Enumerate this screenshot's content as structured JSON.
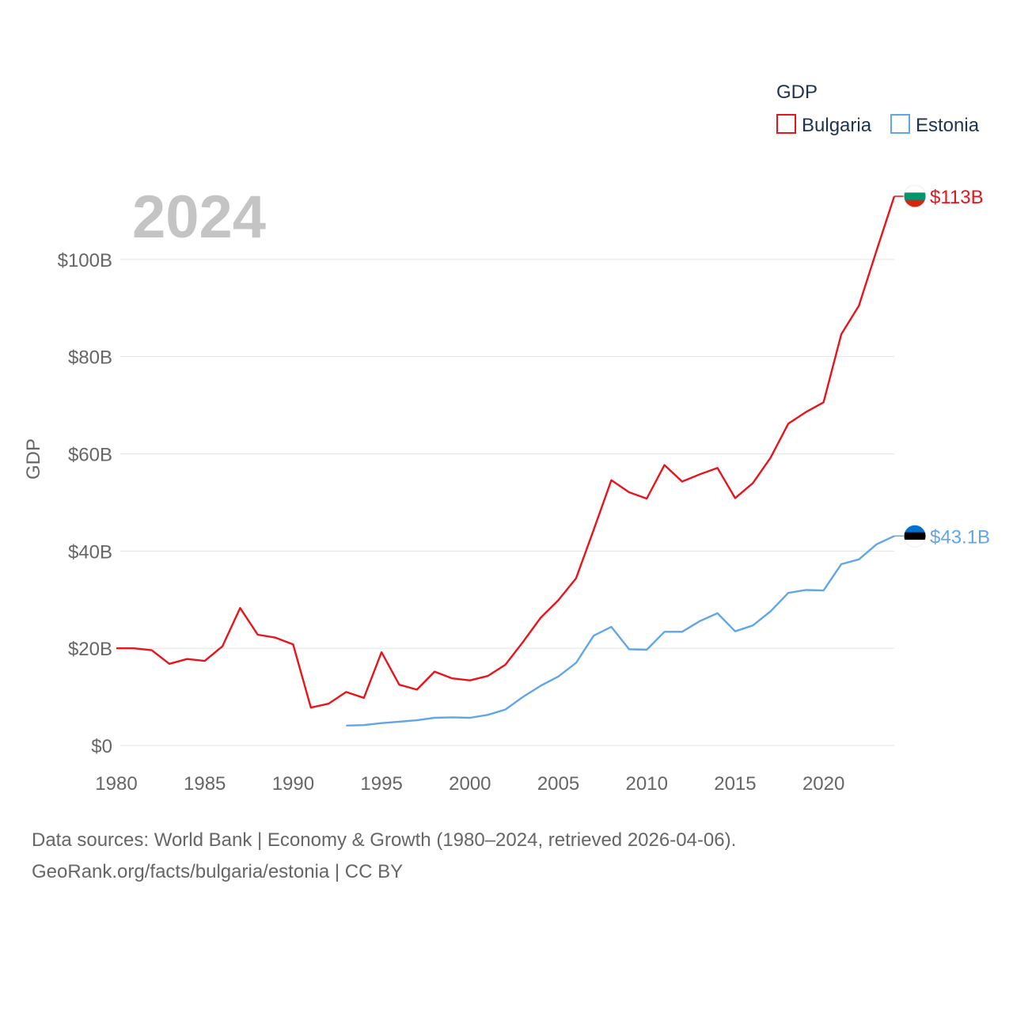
{
  "chart_data": {
    "type": "line",
    "title": "",
    "xlabel": "",
    "ylabel": "GDP",
    "legend_title": "GDP",
    "legend_position": "top-right",
    "year_label": "2024",
    "xlim": [
      1980,
      2024
    ],
    "ylim": [
      0,
      113
    ],
    "x_ticks": [
      1980,
      1985,
      1990,
      1995,
      2000,
      2005,
      2010,
      2015,
      2020
    ],
    "y_ticks": [
      {
        "value": 0,
        "label": "$0"
      },
      {
        "value": 20,
        "label": "$20B"
      },
      {
        "value": 40,
        "label": "$40B"
      },
      {
        "value": 60,
        "label": "$60B"
      },
      {
        "value": 80,
        "label": "$80B"
      },
      {
        "value": 100,
        "label": "$100B"
      }
    ],
    "series": [
      {
        "name": "Bulgaria",
        "color": "#e8141c",
        "end_label": "$113B",
        "flag_colors": [
          "#ffffff",
          "#00966e",
          "#d62612"
        ],
        "points": [
          [
            1980,
            20.0
          ],
          [
            1981,
            20.0
          ],
          [
            1982,
            19.6
          ],
          [
            1983,
            16.8
          ],
          [
            1984,
            17.8
          ],
          [
            1985,
            17.4
          ],
          [
            1986,
            20.4
          ],
          [
            1987,
            28.3
          ],
          [
            1988,
            22.8
          ],
          [
            1989,
            22.2
          ],
          [
            1990,
            20.8
          ],
          [
            1991,
            7.8
          ],
          [
            1992,
            8.6
          ],
          [
            1993,
            11.0
          ],
          [
            1994,
            9.8
          ],
          [
            1995,
            19.2
          ],
          [
            1996,
            12.5
          ],
          [
            1997,
            11.5
          ],
          [
            1998,
            15.2
          ],
          [
            1999,
            13.8
          ],
          [
            2000,
            13.4
          ],
          [
            2001,
            14.3
          ],
          [
            2002,
            16.6
          ],
          [
            2003,
            21.3
          ],
          [
            2004,
            26.3
          ],
          [
            2005,
            29.9
          ],
          [
            2006,
            34.4
          ],
          [
            2007,
            44.4
          ],
          [
            2008,
            54.6
          ],
          [
            2009,
            52.1
          ],
          [
            2010,
            50.8
          ],
          [
            2011,
            57.7
          ],
          [
            2012,
            54.3
          ],
          [
            2013,
            55.8
          ],
          [
            2014,
            57.1
          ],
          [
            2015,
            50.9
          ],
          [
            2016,
            54.0
          ],
          [
            2017,
            59.2
          ],
          [
            2018,
            66.2
          ],
          [
            2019,
            68.6
          ],
          [
            2020,
            70.6
          ],
          [
            2021,
            84.6
          ],
          [
            2022,
            90.5
          ],
          [
            2023,
            101.9
          ],
          [
            2024,
            113.0
          ]
        ]
      },
      {
        "name": "Estonia",
        "color": "#62a6e6",
        "end_label": "$43.1B",
        "flag_colors": [
          "#0072ce",
          "#000000",
          "#ffffff"
        ],
        "points": [
          [
            1993,
            4.1
          ],
          [
            1994,
            4.2
          ],
          [
            1995,
            4.6
          ],
          [
            1996,
            4.9
          ],
          [
            1997,
            5.2
          ],
          [
            1998,
            5.7
          ],
          [
            1999,
            5.8
          ],
          [
            2000,
            5.7
          ],
          [
            2001,
            6.3
          ],
          [
            2002,
            7.4
          ],
          [
            2003,
            10.0
          ],
          [
            2004,
            12.3
          ],
          [
            2005,
            14.2
          ],
          [
            2006,
            17.0
          ],
          [
            2007,
            22.6
          ],
          [
            2008,
            24.4
          ],
          [
            2009,
            19.8
          ],
          [
            2010,
            19.7
          ],
          [
            2011,
            23.4
          ],
          [
            2012,
            23.4
          ],
          [
            2013,
            25.6
          ],
          [
            2014,
            27.2
          ],
          [
            2015,
            23.5
          ],
          [
            2016,
            24.7
          ],
          [
            2017,
            27.6
          ],
          [
            2018,
            31.4
          ],
          [
            2019,
            32.0
          ],
          [
            2020,
            31.9
          ],
          [
            2021,
            37.3
          ],
          [
            2022,
            38.3
          ],
          [
            2023,
            41.4
          ],
          [
            2024,
            43.1
          ]
        ]
      }
    ]
  },
  "footer": {
    "line1": "Data sources: World Bank | Economy & Growth (1980–2024, retrieved 2026-04-06).",
    "line2": "GeoRank.org/facts/bulgaria/estonia | CC BY"
  }
}
